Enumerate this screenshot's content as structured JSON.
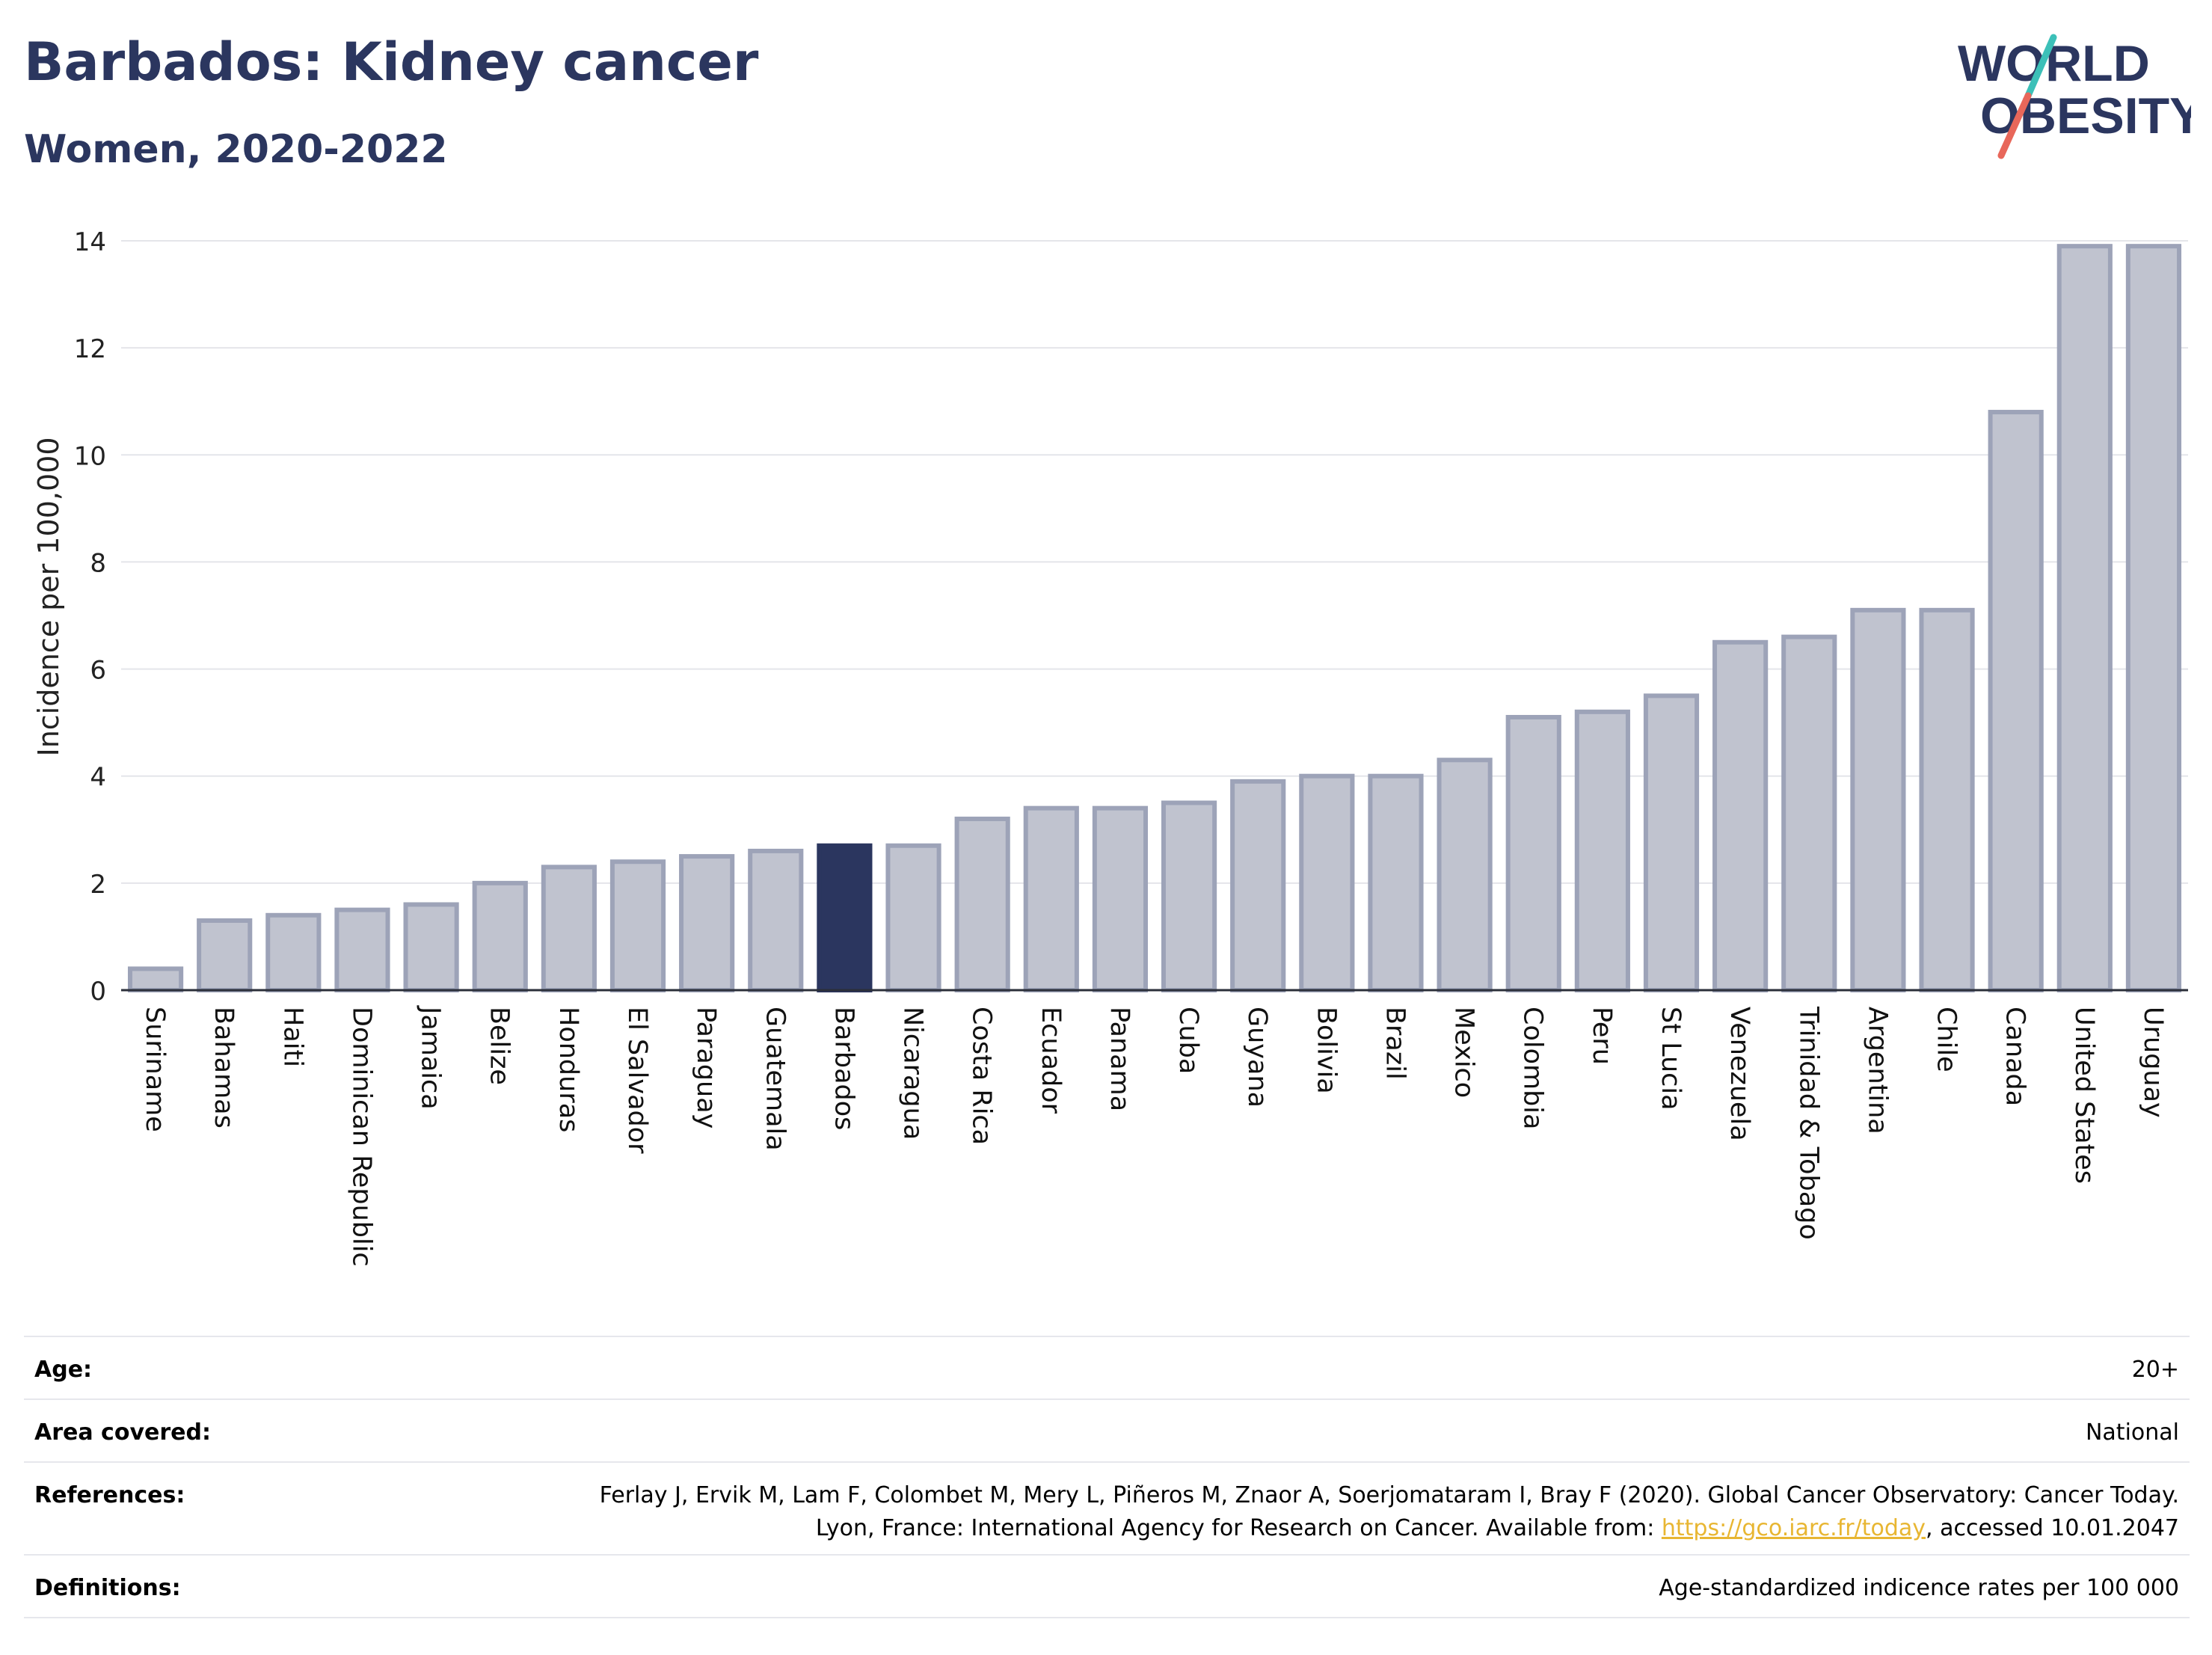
{
  "header": {
    "title": "Barbados: Kidney cancer",
    "subtitle": "Women, 2020-2022"
  },
  "logo": {
    "line1": "WORLD",
    "line2": "OBESITY",
    "colors": {
      "text": "#2b365f",
      "slash_top": "#3cc0b8",
      "slash_bottom": "#e8675a"
    }
  },
  "chart_data": {
    "type": "bar",
    "ylabel": "Incidence per 100,000",
    "ylim": [
      0,
      14
    ],
    "yticks": [
      0,
      2,
      4,
      6,
      8,
      10,
      12,
      14
    ],
    "grid": true,
    "highlight": "Barbados",
    "colors": {
      "bar": "#c0c3cf",
      "bar_edge": "#9da3b8",
      "highlight": "#2b365f"
    },
    "categories": [
      "Suriname",
      "Bahamas",
      "Haiti",
      "Dominican Republic",
      "Jamaica",
      "Belize",
      "Honduras",
      "El Salvador",
      "Paraguay",
      "Guatemala",
      "Barbados",
      "Nicaragua",
      "Costa Rica",
      "Ecuador",
      "Panama",
      "Cuba",
      "Guyana",
      "Bolivia",
      "Brazil",
      "Mexico",
      "Colombia",
      "Peru",
      "St Lucia",
      "Venezuela",
      "Trinidad & Tobago",
      "Argentina",
      "Chile",
      "Canada",
      "United States",
      "Uruguay"
    ],
    "values": [
      0.4,
      1.3,
      1.4,
      1.5,
      1.6,
      2.0,
      2.3,
      2.4,
      2.5,
      2.6,
      2.7,
      2.7,
      3.2,
      3.4,
      3.4,
      3.5,
      3.9,
      4.0,
      4.0,
      4.3,
      5.1,
      5.2,
      5.5,
      6.5,
      6.6,
      7.1,
      7.1,
      10.8,
      13.9,
      13.9
    ]
  },
  "meta": {
    "age_label": "Age:",
    "age_value": "20+",
    "area_label": "Area covered:",
    "area_value": "National",
    "references_label": "References:",
    "references_text": "Ferlay J, Ervik M, Lam F, Colombet M, Mery L, Piñeros M, Znaor A, Soerjomataram I, Bray F (2020). Global Cancer Observatory: Cancer Today. Lyon, France: International Agency for Research on Cancer. Available from: ",
    "references_link": "https://gco.iarc.fr/today",
    "references_suffix": ", accessed 10.01.2047",
    "definitions_label": "Definitions:",
    "definitions_value": "Age-standardized indicence rates per 100 000"
  }
}
